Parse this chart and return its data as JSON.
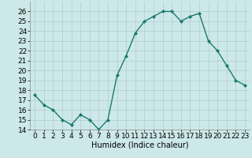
{
  "x": [
    0,
    1,
    2,
    3,
    4,
    5,
    6,
    7,
    8,
    9,
    10,
    11,
    12,
    13,
    14,
    15,
    16,
    17,
    18,
    19,
    20,
    21,
    22,
    23
  ],
  "y": [
    17.5,
    16.5,
    16.0,
    15.0,
    14.5,
    15.5,
    15.0,
    14.0,
    15.0,
    19.5,
    21.5,
    23.8,
    25.0,
    25.5,
    26.0,
    26.0,
    25.0,
    25.5,
    25.8,
    23.0,
    22.0,
    20.5,
    19.0,
    18.5
  ],
  "line_color": "#1a7a6e",
  "marker": "D",
  "marker_size": 2.0,
  "bg_color": "#cce8e8",
  "grid_color": "#b8d8d8",
  "xlabel": "Humidex (Indice chaleur)",
  "ylim": [
    14,
    27
  ],
  "xlim": [
    -0.5,
    23.5
  ],
  "yticks": [
    14,
    15,
    16,
    17,
    18,
    19,
    20,
    21,
    22,
    23,
    24,
    25,
    26
  ],
  "xticks": [
    0,
    1,
    2,
    3,
    4,
    5,
    6,
    7,
    8,
    9,
    10,
    11,
    12,
    13,
    14,
    15,
    16,
    17,
    18,
    19,
    20,
    21,
    22,
    23
  ],
  "xlabel_fontsize": 7,
  "tick_fontsize": 6.5,
  "linewidth": 1.0
}
